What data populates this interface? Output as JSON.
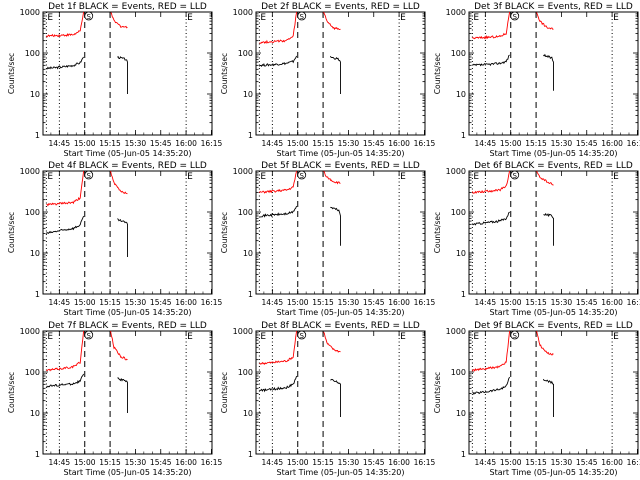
{
  "figure": {
    "xlabel": "Start Time (05-Jun-05 14:35:20)",
    "ylabel": "Counts/sec",
    "x_tick_labels": [
      "14:45",
      "15:00",
      "15:15",
      "15:30",
      "15:45",
      "16:00",
      "16:15"
    ],
    "y_tick_labels": [
      "1",
      "10",
      "100",
      "1000"
    ],
    "markers": {
      "start": "E",
      "saa": "S",
      "end": "E"
    },
    "colors": {
      "events": "#000000",
      "lld": "#ff0000",
      "axes": "#000000"
    }
  },
  "chart_data": [
    {
      "type": "line",
      "title": "Det 1f BLACK = Events, RED = LLD",
      "ylim": [
        1,
        1000
      ],
      "yscale": "log",
      "x_units": "minutes since 14:35:20",
      "xlim": [
        0,
        100
      ],
      "dotted_lines_min": [
        2.0,
        9.7,
        84.7
      ],
      "dashed_lines_min": [
        24.7,
        39.7
      ],
      "series": [
        {
          "name": "Events",
          "color": "#000000",
          "points": [
            [
              2,
              42
            ],
            [
              10,
              45
            ],
            [
              18,
              50
            ],
            [
              22,
              58
            ],
            [
              24,
              80
            ]
          ],
          "points_after": [
            [
              44,
              80
            ],
            [
              49,
              70
            ],
            [
              50,
              60
            ],
            [
              50,
              10
            ]
          ]
        },
        {
          "name": "LLD",
          "color": "#ff0000",
          "points": [
            [
              2,
              260
            ],
            [
              10,
              270
            ],
            [
              18,
              280
            ],
            [
              22,
              340
            ],
            [
              24,
              1000
            ]
          ],
          "points_after": [
            [
              40,
              1000
            ],
            [
              42,
              600
            ],
            [
              46,
              450
            ],
            [
              50,
              420
            ]
          ]
        }
      ]
    },
    {
      "type": "line",
      "title": "Det 2f BLACK = Events, RED = LLD",
      "ylim": [
        1,
        1000
      ],
      "yscale": "log",
      "x_units": "minutes since 14:35:20",
      "xlim": [
        0,
        100
      ],
      "dotted_lines_min": [
        2.0,
        9.7,
        84.7
      ],
      "dashed_lines_min": [
        24.7,
        39.7
      ],
      "series": [
        {
          "name": "Events",
          "color": "#000000",
          "points": [
            [
              2,
              50
            ],
            [
              10,
              52
            ],
            [
              18,
              56
            ],
            [
              22,
              62
            ],
            [
              24,
              85
            ]
          ],
          "points_after": [
            [
              44,
              80
            ],
            [
              49,
              70
            ],
            [
              50,
              60
            ],
            [
              50,
              10
            ]
          ]
        },
        {
          "name": "LLD",
          "color": "#ff0000",
          "points": [
            [
              2,
              180
            ],
            [
              10,
              190
            ],
            [
              18,
              200
            ],
            [
              22,
              250
            ],
            [
              24,
              1000
            ]
          ],
          "points_after": [
            [
              40,
              1000
            ],
            [
              42,
              600
            ],
            [
              46,
              400
            ],
            [
              50,
              380
            ]
          ]
        }
      ]
    },
    {
      "type": "line",
      "title": "Det 3f BLACK = Events, RED = LLD",
      "ylim": [
        1,
        1000
      ],
      "yscale": "log",
      "x_units": "minutes since 14:35:20",
      "xlim": [
        0,
        100
      ],
      "dotted_lines_min": [
        2.0,
        9.7,
        84.7
      ],
      "dashed_lines_min": [
        24.7,
        39.7
      ],
      "series": [
        {
          "name": "Events",
          "color": "#000000",
          "points": [
            [
              2,
              50
            ],
            [
              10,
              52
            ],
            [
              18,
              56
            ],
            [
              22,
              62
            ],
            [
              24,
              90
            ]
          ],
          "points_after": [
            [
              44,
              90
            ],
            [
              49,
              75
            ],
            [
              50,
              60
            ],
            [
              50,
              12
            ]
          ]
        },
        {
          "name": "LLD",
          "color": "#ff0000",
          "points": [
            [
              2,
              230
            ],
            [
              10,
              240
            ],
            [
              18,
              250
            ],
            [
              22,
              300
            ],
            [
              24,
              1000
            ]
          ],
          "points_after": [
            [
              40,
              1000
            ],
            [
              42,
              600
            ],
            [
              46,
              420
            ],
            [
              50,
              380
            ]
          ]
        }
      ]
    },
    {
      "type": "line",
      "title": "Det 4f BLACK = Events, RED = LLD",
      "ylim": [
        1,
        1000
      ],
      "yscale": "log",
      "x_units": "minutes since 14:35:20",
      "xlim": [
        0,
        100
      ],
      "dotted_lines_min": [
        2.0,
        9.7,
        84.7
      ],
      "dashed_lines_min": [
        24.7,
        39.7
      ],
      "series": [
        {
          "name": "Events",
          "color": "#000000",
          "points": [
            [
              2,
              30
            ],
            [
              10,
              35
            ],
            [
              18,
              40
            ],
            [
              22,
              48
            ],
            [
              24,
              80
            ]
          ],
          "points_after": [
            [
              44,
              65
            ],
            [
              49,
              55
            ],
            [
              50,
              50
            ],
            [
              50,
              8
            ]
          ]
        },
        {
          "name": "LLD",
          "color": "#ff0000",
          "points": [
            [
              2,
              150
            ],
            [
              10,
              160
            ],
            [
              18,
              170
            ],
            [
              22,
              220
            ],
            [
              24,
              1000
            ]
          ],
          "points_after": [
            [
              40,
              1000
            ],
            [
              42,
              500
            ],
            [
              46,
              320
            ],
            [
              50,
              280
            ]
          ]
        }
      ]
    },
    {
      "type": "line",
      "title": "Det 5f BLACK = Events, RED = LLD",
      "ylim": [
        1,
        1000
      ],
      "yscale": "log",
      "x_units": "minutes since 14:35:20",
      "xlim": [
        0,
        100
      ],
      "dotted_lines_min": [
        2.0,
        9.7,
        84.7
      ],
      "dashed_lines_min": [
        24.7,
        39.7
      ],
      "series": [
        {
          "name": "Events",
          "color": "#000000",
          "points": [
            [
              2,
              80
            ],
            [
              10,
              85
            ],
            [
              18,
              90
            ],
            [
              22,
              100
            ],
            [
              24,
              140
            ]
          ],
          "points_after": [
            [
              44,
              130
            ],
            [
              49,
              110
            ],
            [
              50,
              80
            ],
            [
              50,
              15
            ]
          ]
        },
        {
          "name": "LLD",
          "color": "#ff0000",
          "points": [
            [
              2,
              300
            ],
            [
              10,
              320
            ],
            [
              18,
              340
            ],
            [
              22,
              400
            ],
            [
              24,
              1000
            ]
          ],
          "points_after": [
            [
              40,
              1000
            ],
            [
              42,
              700
            ],
            [
              46,
              550
            ],
            [
              50,
              500
            ]
          ]
        }
      ]
    },
    {
      "type": "line",
      "title": "Det 6f BLACK = Events, RED = LLD",
      "ylim": [
        1,
        1000
      ],
      "yscale": "log",
      "x_units": "minutes since 14:35:20",
      "xlim": [
        0,
        100
      ],
      "dotted_lines_min": [
        2.0,
        9.7,
        84.7
      ],
      "dashed_lines_min": [
        24.7,
        39.7
      ],
      "series": [
        {
          "name": "Events",
          "color": "#000000",
          "points": [
            [
              2,
              50
            ],
            [
              10,
              55
            ],
            [
              18,
              60
            ],
            [
              22,
              70
            ],
            [
              24,
              100
            ]
          ],
          "points_after": [
            [
              44,
              90
            ],
            [
              49,
              80
            ],
            [
              50,
              70
            ],
            [
              50,
              15
            ]
          ]
        },
        {
          "name": "LLD",
          "color": "#ff0000",
          "points": [
            [
              2,
              300
            ],
            [
              10,
              320
            ],
            [
              18,
              340
            ],
            [
              22,
              420
            ],
            [
              24,
              1000
            ]
          ],
          "points_after": [
            [
              40,
              1000
            ],
            [
              42,
              700
            ],
            [
              46,
              550
            ],
            [
              50,
              450
            ]
          ]
        }
      ]
    },
    {
      "type": "line",
      "title": "Det 7f BLACK = Events, RED = LLD",
      "ylim": [
        1,
        1000
      ],
      "yscale": "log",
      "x_units": "minutes since 14:35:20",
      "xlim": [
        0,
        100
      ],
      "dotted_lines_min": [
        2.0,
        9.7,
        84.7
      ],
      "dashed_lines_min": [
        24.7,
        39.7
      ],
      "series": [
        {
          "name": "Events",
          "color": "#000000",
          "points": [
            [
              2,
              45
            ],
            [
              10,
              48
            ],
            [
              18,
              52
            ],
            [
              22,
              60
            ],
            [
              24,
              90
            ]
          ],
          "points_after": [
            [
              44,
              70
            ],
            [
              49,
              60
            ],
            [
              50,
              55
            ],
            [
              50,
              10
            ]
          ]
        },
        {
          "name": "LLD",
          "color": "#ff0000",
          "points": [
            [
              2,
              110
            ],
            [
              10,
              120
            ],
            [
              18,
              135
            ],
            [
              22,
              170
            ],
            [
              24,
              1000
            ]
          ],
          "points_after": [
            [
              40,
              1000
            ],
            [
              42,
              400
            ],
            [
              46,
              240
            ],
            [
              50,
              200
            ]
          ]
        }
      ]
    },
    {
      "type": "line",
      "title": "Det 8f BLACK = Events, RED = LLD",
      "ylim": [
        1,
        1000
      ],
      "yscale": "log",
      "x_units": "minutes since 14:35:20",
      "xlim": [
        0,
        100
      ],
      "dotted_lines_min": [
        2.0,
        9.7,
        84.7
      ],
      "dashed_lines_min": [
        24.7,
        39.7
      ],
      "series": [
        {
          "name": "Events",
          "color": "#000000",
          "points": [
            [
              2,
              35
            ],
            [
              10,
              38
            ],
            [
              18,
              42
            ],
            [
              22,
              50
            ],
            [
              24,
              80
            ]
          ],
          "points_after": [
            [
              44,
              65
            ],
            [
              49,
              55
            ],
            [
              50,
              50
            ],
            [
              50,
              8
            ]
          ]
        },
        {
          "name": "LLD",
          "color": "#ff0000",
          "points": [
            [
              2,
              160
            ],
            [
              10,
              170
            ],
            [
              18,
              185
            ],
            [
              22,
              230
            ],
            [
              24,
              1000
            ]
          ],
          "points_after": [
            [
              40,
              1000
            ],
            [
              42,
              500
            ],
            [
              46,
              350
            ],
            [
              50,
              310
            ]
          ]
        }
      ]
    },
    {
      "type": "line",
      "title": "Det 9f BLACK = Events, RED = LLD",
      "ylim": [
        1,
        1000
      ],
      "yscale": "log",
      "x_units": "minutes since 14:35:20",
      "xlim": [
        0,
        100
      ],
      "dotted_lines_min": [
        2.0,
        9.7,
        84.7
      ],
      "dashed_lines_min": [
        24.7,
        39.7
      ],
      "series": [
        {
          "name": "Events",
          "color": "#000000",
          "points": [
            [
              2,
              30
            ],
            [
              10,
              33
            ],
            [
              18,
              38
            ],
            [
              22,
              45
            ],
            [
              24,
              75
            ]
          ],
          "points_after": [
            [
              44,
              65
            ],
            [
              49,
              55
            ],
            [
              50,
              50
            ],
            [
              50,
              8
            ]
          ]
        },
        {
          "name": "LLD",
          "color": "#ff0000",
          "points": [
            [
              2,
              110
            ],
            [
              10,
              120
            ],
            [
              18,
              135
            ],
            [
              22,
              170
            ],
            [
              24,
              1000
            ]
          ],
          "points_after": [
            [
              40,
              1000
            ],
            [
              42,
              450
            ],
            [
              46,
              290
            ],
            [
              50,
              270
            ]
          ]
        }
      ]
    }
  ]
}
